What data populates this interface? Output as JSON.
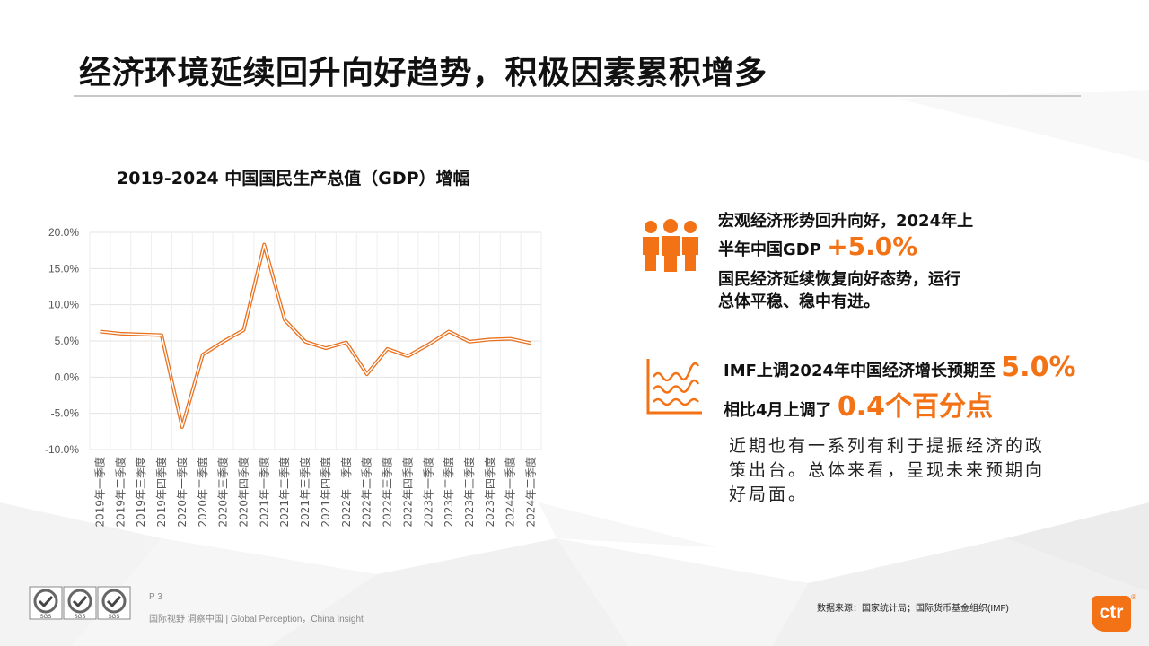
{
  "title": "经济环境延续回升向好趋势，积极因素累积增多",
  "chart_data": {
    "type": "line",
    "title": "2019-2024 中国国民生产总值（GDP）增幅",
    "categories": [
      "2019年一季度",
      "2019年二季度",
      "2019年三季度",
      "2019年四季度",
      "2020年一季度",
      "2020年二季度",
      "2020年三季度",
      "2020年四季度",
      "2021年一季度",
      "2021年二季度",
      "2021年三季度",
      "2021年四季度",
      "2022年一季度",
      "2022年二季度",
      "2022年三季度",
      "2022年四季度",
      "2023年一季度",
      "2023年二季度",
      "2023年三季度",
      "2023年四季度",
      "2024年一季度",
      "2024年二季度"
    ],
    "values": [
      6.3,
      6.0,
      5.9,
      5.8,
      -6.9,
      3.1,
      4.9,
      6.5,
      18.3,
      7.9,
      4.9,
      4.0,
      4.8,
      0.4,
      3.9,
      2.9,
      4.5,
      6.3,
      4.9,
      5.2,
      5.3,
      4.7
    ],
    "ylim": [
      -10,
      20
    ],
    "yticks": [
      "20.0%",
      "15.0%",
      "10.0%",
      "5.0%",
      "0.0%",
      "-5.0%",
      "-10.0%"
    ],
    "grid": true,
    "color": "#e8711f"
  },
  "panel1": {
    "line1": "宏观经济形势回升向好，2024年上",
    "line2_prefix": "半年中国GDP",
    "line2_highlight": "+5.0%",
    "line3": "国民经济延续恢复向好态势，运行",
    "line4": "总体平稳、稳中有进。",
    "icon": "people-group-icon"
  },
  "panel2": {
    "line1_prefix": "IMF上调2024年中国经济增长预期至",
    "line1_highlight": "5.0%",
    "line2_prefix": "相比4月上调了",
    "line2_highlight": "0.4个百分点",
    "icon": "wave-chart-icon"
  },
  "note": "近期也有一系列有利于提振经济的政策出台。总体来看，呈现未来预期向好局面。",
  "footer": {
    "page": "P 3",
    "tagline": "国际视野 洞察中国 | Global Perception，China Insight",
    "source": "数据来源：国家统计局；国际货币基金组织(IMF)",
    "sgs_label": "SGS",
    "logo": "ctr",
    "reg": "®"
  },
  "colors": {
    "accent": "#f47216"
  }
}
